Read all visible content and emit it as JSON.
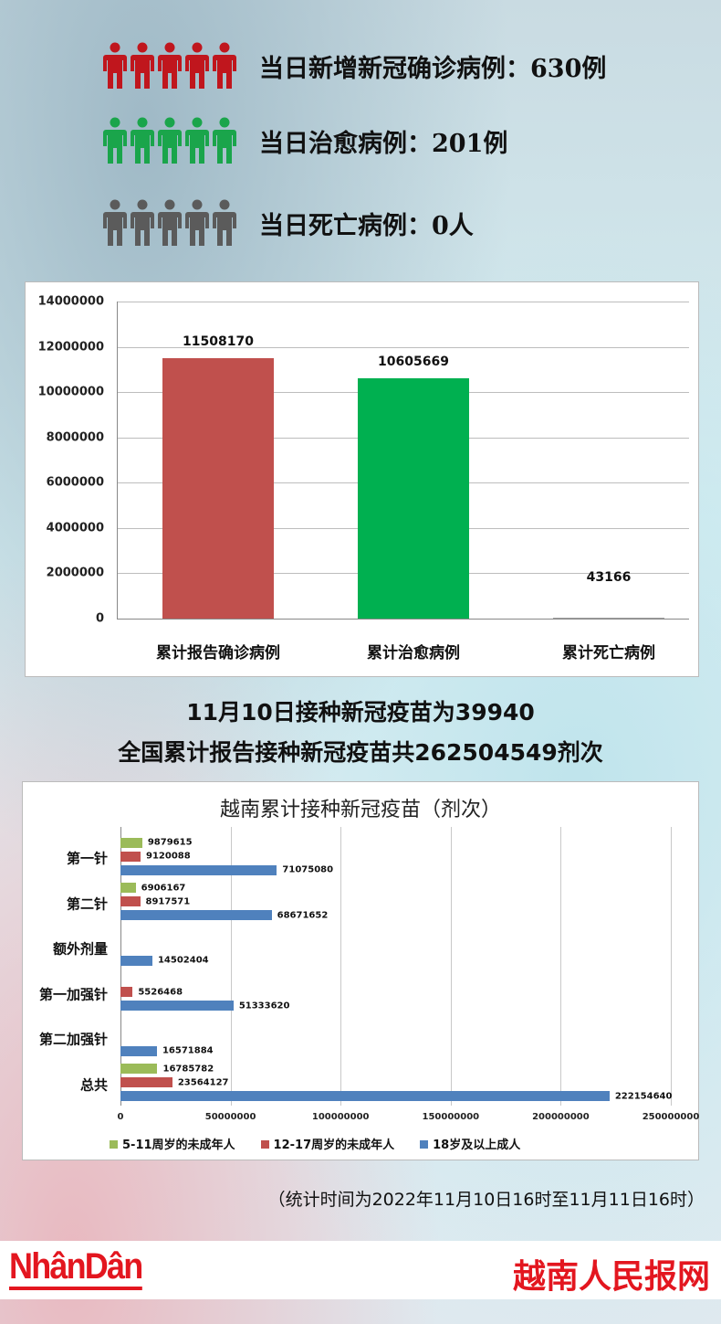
{
  "stats": [
    {
      "label": "当日新增新冠确诊病例：630例",
      "icon": "person-group-icon",
      "color": "#c0161d"
    },
    {
      "label": "当日治愈病例：201例",
      "icon": "person-group-icon",
      "color": "#1aa54b"
    },
    {
      "label": "当日死亡病例：0人",
      "icon": "person-group-icon",
      "color": "#5b5b5b"
    }
  ],
  "chart_data": [
    {
      "type": "bar",
      "title": "",
      "ylim": [
        0,
        14000000
      ],
      "grid": true,
      "yticks": [
        "0",
        "2000000",
        "4000000",
        "6000000",
        "8000000",
        "10000000",
        "12000000",
        "14000000"
      ],
      "categories": [
        "累计报告确诊病例",
        "累计治愈病例",
        "累计死亡病例"
      ],
      "values": [
        11508170,
        10605669,
        43166
      ],
      "value_labels": [
        "11508170",
        "10605669",
        "43166"
      ],
      "colors": [
        "#c0504d",
        "#00b050",
        "#a0a0a0"
      ]
    },
    {
      "type": "bar",
      "orientation": "horizontal",
      "title": "越南累计接种新冠疫苗（剂次）",
      "xlim": [
        0,
        250000000
      ],
      "grid": true,
      "xticks": [
        "0",
        "50000000",
        "100000000",
        "150000000",
        "200000000",
        "250000000"
      ],
      "categories": [
        "第一针",
        "第二针",
        "额外剂量",
        "第一加强针",
        "第二加强针",
        "总共"
      ],
      "series": [
        {
          "name": "5-11周岁的未成年人",
          "color": "#9bbb59",
          "values": [
            9879615,
            6906167,
            null,
            null,
            null,
            16785782
          ]
        },
        {
          "name": "12-17周岁的未成年人",
          "color": "#c0504d",
          "values": [
            9120088,
            8917571,
            null,
            5526468,
            null,
            23564127
          ]
        },
        {
          "name": "18岁及以上成人",
          "color": "#4f81bd",
          "values": [
            71075080,
            68671652,
            14502404,
            51333620,
            16571884,
            222154640
          ]
        }
      ],
      "legend": "bottom"
    }
  ],
  "headline": {
    "line1": "11月10日接种新冠疫苗为39940",
    "line2": "全国累计报告接种新冠疫苗共262504549剂次"
  },
  "footnote": "（统计时间为2022年11月10日16时至11月11日16时）",
  "footer": {
    "logo": "NhânDân",
    "site_name": "越南人民报网",
    "brand_color": "#e3161f"
  }
}
